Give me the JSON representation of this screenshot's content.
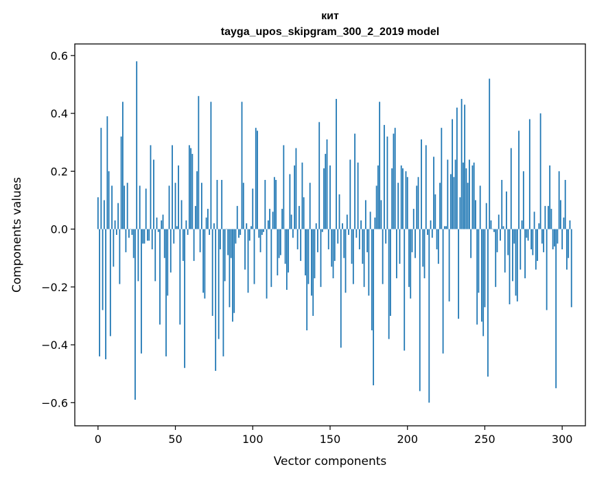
{
  "chart_data": {
    "type": "bar",
    "title_line1": "кит",
    "title_line2": "tayga_upos_skipgram_300_2_2019 model",
    "xlabel": "Vector components",
    "ylabel": "Components values",
    "xlim": [
      -15,
      315
    ],
    "ylim": [
      -0.68,
      0.64
    ],
    "xticks": [
      0,
      50,
      100,
      150,
      200,
      250,
      300
    ],
    "yticks": [
      -0.6,
      -0.4,
      -0.2,
      0.0,
      0.2,
      0.4,
      0.6
    ],
    "ytick_labels": [
      "−0.6",
      "−0.4",
      "−0.2",
      "0.0",
      "0.2",
      "0.4",
      "0.6"
    ],
    "bar_color": "#1f77b4",
    "values": [
      0.11,
      -0.44,
      0.35,
      -0.28,
      0.1,
      -0.45,
      0.39,
      0.2,
      -0.37,
      0.15,
      -0.13,
      0.03,
      -0.02,
      0.09,
      -0.19,
      0.32,
      0.44,
      0.15,
      -0.08,
      0.16,
      -0.03,
      0.0,
      -0.02,
      -0.1,
      -0.59,
      0.58,
      -0.18,
      0.15,
      -0.43,
      -0.05,
      -0.05,
      0.14,
      -0.04,
      -0.04,
      0.29,
      -0.07,
      0.24,
      -0.18,
      0.04,
      -0.01,
      -0.33,
      0.03,
      0.05,
      -0.1,
      -0.44,
      -0.23,
      0.15,
      -0.15,
      0.29,
      -0.05,
      0.16,
      0.01,
      0.22,
      -0.33,
      0.1,
      -0.11,
      -0.48,
      0.03,
      -0.02,
      0.29,
      0.28,
      0.26,
      -0.11,
      0.08,
      0.2,
      0.46,
      -0.08,
      0.16,
      -0.22,
      -0.24,
      0.04,
      0.07,
      -0.02,
      0.44,
      -0.3,
      0.02,
      -0.49,
      0.17,
      -0.38,
      -0.07,
      0.17,
      -0.44,
      -0.18,
      0.0,
      -0.09,
      -0.27,
      -0.1,
      -0.32,
      -0.29,
      -0.05,
      0.08,
      -0.03,
      -0.02,
      0.44,
      0.16,
      -0.14,
      0.02,
      -0.22,
      -0.04,
      0.01,
      0.14,
      -0.19,
      0.35,
      0.34,
      -0.03,
      -0.08,
      -0.02,
      -0.01,
      0.17,
      -0.24,
      0.03,
      0.07,
      -0.2,
      0.06,
      0.18,
      0.17,
      -0.16,
      -0.1,
      -0.09,
      0.07,
      0.29,
      -0.12,
      -0.21,
      -0.15,
      0.19,
      0.05,
      -0.03,
      0.22,
      0.28,
      -0.07,
      0.08,
      -0.11,
      0.23,
      0.11,
      -0.16,
      -0.35,
      -0.19,
      0.16,
      -0.23,
      -0.3,
      -0.17,
      0.02,
      -0.08,
      0.37,
      -0.2,
      -0.01,
      0.21,
      0.26,
      0.31,
      -0.07,
      0.22,
      -0.13,
      -0.17,
      -0.11,
      0.45,
      -0.05,
      0.12,
      -0.41,
      0.02,
      -0.1,
      -0.22,
      0.05,
      -0.02,
      0.24,
      -0.12,
      -0.19,
      0.33,
      -0.03,
      0.23,
      -0.07,
      0.03,
      -0.12,
      -0.2,
      0.1,
      -0.08,
      -0.23,
      0.06,
      -0.35,
      -0.54,
      0.04,
      0.15,
      0.22,
      0.44,
      0.1,
      -0.19,
      0.36,
      -0.05,
      0.32,
      -0.38,
      -0.3,
      0.21,
      0.33,
      0.35,
      -0.17,
      0.16,
      -0.12,
      0.22,
      0.21,
      -0.42,
      0.2,
      0.18,
      -0.2,
      -0.24,
      -0.08,
      0.07,
      -0.1,
      0.15,
      0.18,
      -0.56,
      0.31,
      -0.13,
      -0.17,
      0.29,
      -0.02,
      -0.6,
      0.03,
      -0.03,
      0.25,
      0.12,
      -0.07,
      -0.12,
      0.16,
      0.35,
      -0.43,
      0.01,
      0.01,
      0.24,
      -0.25,
      0.19,
      0.38,
      0.18,
      0.24,
      0.42,
      -0.31,
      0.11,
      0.45,
      0.23,
      0.43,
      0.21,
      0.16,
      0.24,
      -0.1,
      0.22,
      0.23,
      0.1,
      -0.33,
      -0.22,
      0.15,
      -0.32,
      -0.37,
      -0.27,
      0.09,
      -0.51,
      0.52,
      0.03,
      0.0,
      -0.01,
      -0.2,
      -0.08,
      0.05,
      -0.04,
      0.17,
      0.01,
      -0.15,
      0.13,
      -0.09,
      -0.26,
      0.28,
      -0.18,
      -0.05,
      -0.23,
      -0.25,
      0.34,
      -0.14,
      0.03,
      0.2,
      -0.17,
      -0.03,
      -0.04,
      0.38,
      -0.07,
      -0.09,
      0.06,
      -0.14,
      -0.11,
      0.02,
      0.4,
      -0.05,
      -0.08,
      0.08,
      -0.28,
      0.08,
      0.22,
      0.07,
      -0.07,
      -0.06,
      -0.55,
      -0.05,
      0.2,
      0.1,
      -0.07,
      0.04,
      0.17,
      -0.14,
      -0.1,
      0.03,
      -0.27
    ]
  }
}
